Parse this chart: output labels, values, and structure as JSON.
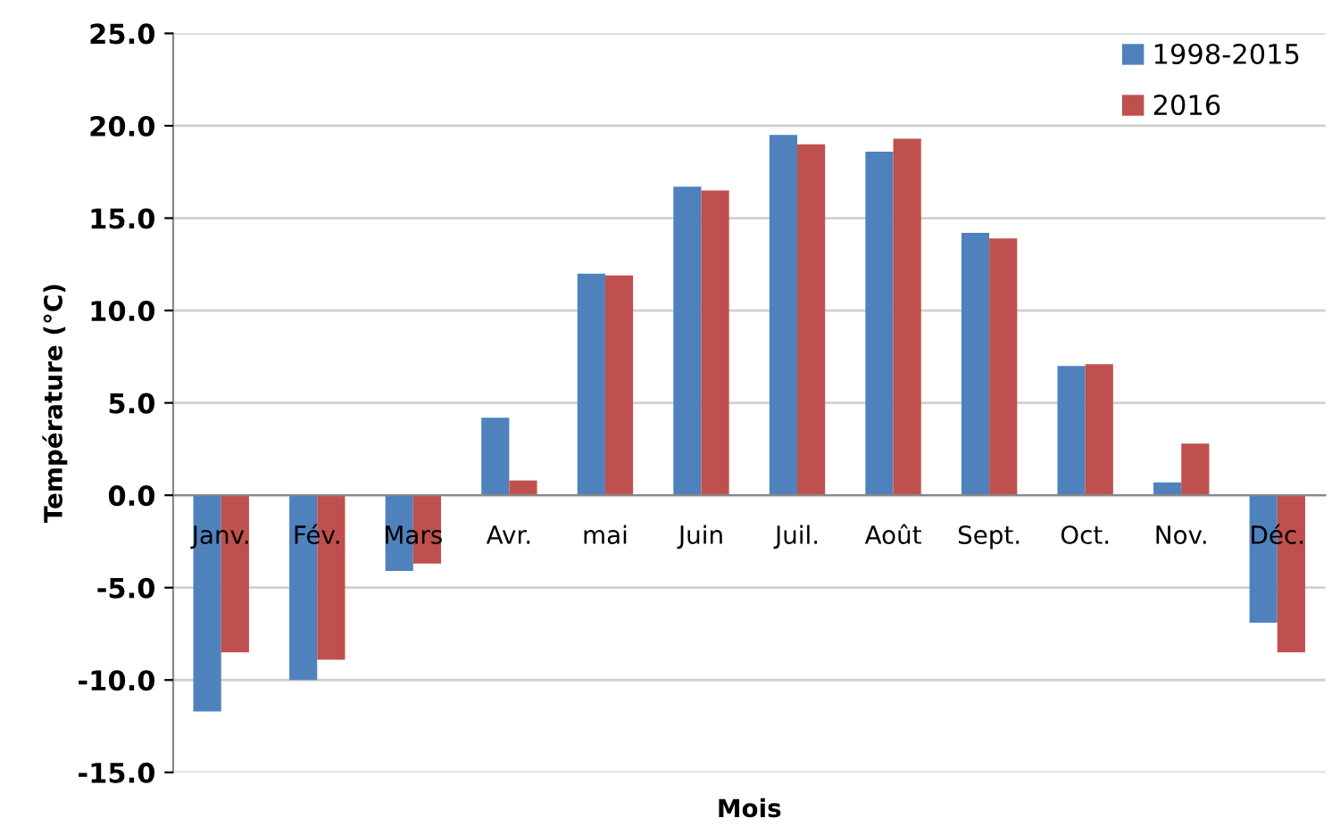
{
  "chart_data": {
    "type": "bar",
    "xlabel": "Mois",
    "ylabel": "Température (°C)",
    "categories": [
      "Janv.",
      "Fév.",
      "Mars",
      "Avr.",
      "mai",
      "Juin",
      "Juil.",
      "Août",
      "Sept.",
      "Oct.",
      "Nov.",
      "Déc."
    ],
    "series": [
      {
        "name": "1998-2015",
        "color": "#4f81bd",
        "values": [
          -11.7,
          -10.0,
          -4.1,
          4.2,
          12.0,
          16.7,
          19.5,
          18.6,
          14.2,
          7.0,
          0.7,
          -6.9
        ]
      },
      {
        "name": "2016",
        "color": "#c0504d",
        "values": [
          -8.5,
          -8.9,
          -3.7,
          0.8,
          11.9,
          16.5,
          19.0,
          19.3,
          13.9,
          7.1,
          2.8,
          -8.5
        ]
      }
    ],
    "ylim": [
      -15,
      25
    ],
    "yticks": [
      {
        "value": -15,
        "label": "-15.0"
      },
      {
        "value": -10,
        "label": "-10.0"
      },
      {
        "value": -5,
        "label": "-5.0"
      },
      {
        "value": 0,
        "label": "0.0"
      },
      {
        "value": 5,
        "label": "5.0"
      },
      {
        "value": 10,
        "label": "10.0"
      },
      {
        "value": 15,
        "label": "15.0"
      },
      {
        "value": 20,
        "label": "20.0"
      },
      {
        "value": 25,
        "label": "25.0"
      }
    ],
    "grid": "y",
    "legend": "top right"
  }
}
